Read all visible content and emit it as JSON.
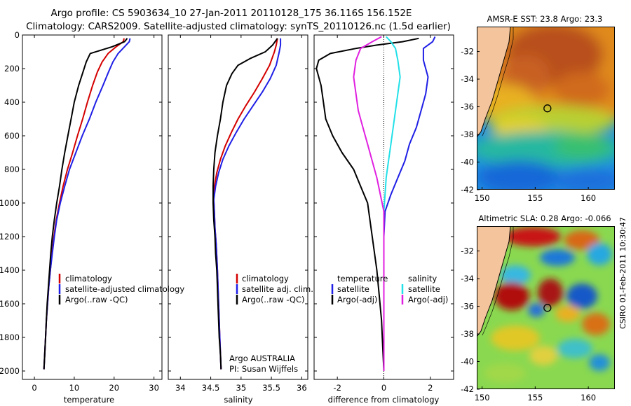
{
  "header": {
    "title_line1": "Argo profile: CS 5903634_10 27-Jan-2011 20110128_175 36.116S 156.152E",
    "title_line2": "Climatology: CARS2009. Satellite-adjusted climatology: synTS_20110126.nc (1.5d earlier)"
  },
  "side_label": "CSIRO 01-Feb-2011 10:30:47",
  "colors": {
    "climatology": "#d40000",
    "satellite": "#1f1fe6",
    "argo": "#000000",
    "sat_diff_salinity": "#22e0e8",
    "argo_diff_salinity": "#e020e0",
    "land": "#f4c49c"
  },
  "chart_data": [
    {
      "type": "line",
      "xlabel": "temperature",
      "ylabel": "",
      "xlim": [
        -3,
        32
      ],
      "ylim": [
        2050,
        0
      ],
      "xticks": [
        0,
        10,
        20,
        30
      ],
      "yticks": [
        0,
        200,
        400,
        600,
        800,
        1000,
        1200,
        1400,
        1600,
        1800,
        2000
      ],
      "legend": [
        "climatology",
        "satellite-adjusted climatology",
        "Argo(..raw -QC)"
      ],
      "series": [
        {
          "name": "climatology",
          "color": "#d40000",
          "points": [
            [
              22.5,
              20
            ],
            [
              22.3,
              40
            ],
            [
              20.5,
              70
            ],
            [
              18.5,
              110
            ],
            [
              17.0,
              160
            ],
            [
              15.8,
              220
            ],
            [
              14.6,
              300
            ],
            [
              13.3,
              400
            ],
            [
              12.1,
              500
            ],
            [
              10.8,
              600
            ],
            [
              9.6,
              700
            ],
            [
              8.3,
              800
            ],
            [
              7.2,
              900
            ],
            [
              6.3,
              1000
            ],
            [
              5.5,
              1100
            ],
            [
              4.9,
              1200
            ],
            [
              4.4,
              1300
            ],
            [
              4.0,
              1400
            ],
            [
              3.6,
              1500
            ],
            [
              3.3,
              1600
            ],
            [
              3.0,
              1700
            ],
            [
              2.8,
              1800
            ],
            [
              2.6,
              1900
            ],
            [
              2.4,
              1990
            ]
          ]
        },
        {
          "name": "satellite-adjusted climatology",
          "color": "#1f1fe6",
          "points": [
            [
              24.0,
              20
            ],
            [
              23.8,
              40
            ],
            [
              22.6,
              70
            ],
            [
              21.0,
              110
            ],
            [
              19.7,
              160
            ],
            [
              18.6,
              220
            ],
            [
              17.2,
              300
            ],
            [
              15.4,
              400
            ],
            [
              13.8,
              500
            ],
            [
              12.0,
              600
            ],
            [
              10.4,
              700
            ],
            [
              8.8,
              800
            ],
            [
              7.6,
              900
            ],
            [
              6.5,
              1000
            ],
            [
              5.6,
              1100
            ],
            [
              5.0,
              1200
            ],
            [
              4.5,
              1300
            ],
            [
              4.0,
              1400
            ],
            [
              3.6,
              1500
            ],
            [
              3.3,
              1600
            ],
            [
              3.0,
              1700
            ],
            [
              2.8,
              1800
            ],
            [
              2.6,
              1900
            ],
            [
              2.4,
              1990
            ]
          ]
        },
        {
          "name": "Argo(..raw -QC)",
          "color": "#000000",
          "points": [
            [
              23.3,
              20
            ],
            [
              22.6,
              40
            ],
            [
              19.5,
              70
            ],
            [
              14.0,
              110
            ],
            [
              13.0,
              160
            ],
            [
              12.2,
              220
            ],
            [
              11.1,
              300
            ],
            [
              10.0,
              400
            ],
            [
              9.2,
              500
            ],
            [
              8.4,
              600
            ],
            [
              7.6,
              700
            ],
            [
              6.9,
              800
            ],
            [
              6.3,
              900
            ],
            [
              5.6,
              1000
            ],
            [
              5.0,
              1100
            ],
            [
              4.5,
              1200
            ],
            [
              4.1,
              1300
            ],
            [
              3.8,
              1400
            ],
            [
              3.5,
              1500
            ],
            [
              3.2,
              1600
            ],
            [
              3.0,
              1700
            ],
            [
              2.8,
              1800
            ],
            [
              2.6,
              1900
            ],
            [
              2.4,
              1990
            ]
          ]
        }
      ]
    },
    {
      "type": "line",
      "xlabel": "salinity",
      "ylabel": "",
      "xlim": [
        33.8,
        36.1
      ],
      "ylim": [
        2050,
        0
      ],
      "xticks": [
        34,
        34.5,
        35,
        35.5,
        36
      ],
      "yticks": [
        0,
        200,
        400,
        600,
        800,
        1000,
        1200,
        1400,
        1600,
        1800,
        2000
      ],
      "legend": [
        "climatology",
        "satellite adj. clim.",
        "Argo(..raw -QC)"
      ],
      "annotation_lines": [
        "Argo AUSTRALIA",
        "PI: Susan Wijffels"
      ],
      "series": [
        {
          "name": "climatology",
          "color": "#d40000",
          "points": [
            [
              35.6,
              20
            ],
            [
              35.58,
              60
            ],
            [
              35.55,
              100
            ],
            [
              35.47,
              180
            ],
            [
              35.35,
              260
            ],
            [
              35.22,
              340
            ],
            [
              35.08,
              420
            ],
            [
              34.95,
              500
            ],
            [
              34.84,
              580
            ],
            [
              34.74,
              660
            ],
            [
              34.66,
              740
            ],
            [
              34.6,
              820
            ],
            [
              34.56,
              900
            ],
            [
              34.55,
              980
            ],
            [
              34.56,
              1060
            ],
            [
              34.57,
              1150
            ],
            [
              34.59,
              1250
            ],
            [
              34.61,
              1400
            ],
            [
              34.63,
              1600
            ],
            [
              34.65,
              1800
            ],
            [
              34.67,
              1990
            ]
          ]
        },
        {
          "name": "satellite adj. clim.",
          "color": "#1f1fe6",
          "points": [
            [
              35.65,
              20
            ],
            [
              35.65,
              60
            ],
            [
              35.63,
              100
            ],
            [
              35.58,
              180
            ],
            [
              35.48,
              260
            ],
            [
              35.35,
              340
            ],
            [
              35.2,
              420
            ],
            [
              35.05,
              500
            ],
            [
              34.92,
              580
            ],
            [
              34.8,
              660
            ],
            [
              34.7,
              740
            ],
            [
              34.63,
              820
            ],
            [
              34.58,
              900
            ],
            [
              34.55,
              980
            ],
            [
              34.56,
              1060
            ],
            [
              34.57,
              1150
            ],
            [
              34.59,
              1250
            ],
            [
              34.61,
              1400
            ],
            [
              34.63,
              1600
            ],
            [
              34.65,
              1800
            ],
            [
              34.67,
              1990
            ]
          ]
        },
        {
          "name": "Argo(..raw -QC)",
          "color": "#000000",
          "points": [
            [
              35.6,
              20
            ],
            [
              35.52,
              60
            ],
            [
              35.4,
              100
            ],
            [
              35.15,
              140
            ],
            [
              34.95,
              180
            ],
            [
              34.85,
              230
            ],
            [
              34.76,
              300
            ],
            [
              34.7,
              400
            ],
            [
              34.66,
              500
            ],
            [
              34.61,
              600
            ],
            [
              34.57,
              700
            ],
            [
              34.55,
              800
            ],
            [
              34.54,
              900
            ],
            [
              34.54,
              1000
            ],
            [
              34.55,
              1100
            ],
            [
              34.57,
              1200
            ],
            [
              34.58,
              1300
            ],
            [
              34.6,
              1400
            ],
            [
              34.61,
              1500
            ],
            [
              34.62,
              1600
            ],
            [
              34.63,
              1700
            ],
            [
              34.64,
              1800
            ],
            [
              34.66,
              1900
            ],
            [
              34.67,
              1990
            ]
          ]
        }
      ]
    },
    {
      "type": "line",
      "xlabel": "difference from climatology",
      "ylabel": "",
      "xlim": [
        -3,
        3
      ],
      "ylim": [
        2050,
        0
      ],
      "xticks": [
        -2,
        0,
        2
      ],
      "yticks": [
        0,
        200,
        400,
        600,
        800,
        1000,
        1200,
        1400,
        1600,
        1800,
        2000
      ],
      "zero_line": true,
      "legend_groups": [
        {
          "heading": "temperature",
          "items": [
            "satellite",
            "Argo(-adj)"
          ]
        },
        {
          "heading": "salinity",
          "items": [
            "satellite",
            "Argo(-adj)"
          ]
        }
      ],
      "series": [
        {
          "name": "temperature satellite",
          "color": "#1f1fe6",
          "points": [
            [
              2.2,
              10
            ],
            [
              2.1,
              40
            ],
            [
              1.7,
              80
            ],
            [
              1.7,
              150
            ],
            [
              1.9,
              250
            ],
            [
              1.8,
              350
            ],
            [
              1.6,
              450
            ],
            [
              1.4,
              550
            ],
            [
              1.1,
              650
            ],
            [
              0.9,
              750
            ],
            [
              0.6,
              850
            ],
            [
              0.3,
              950
            ],
            [
              0.05,
              1050
            ],
            [
              0.0,
              1200
            ],
            [
              0.0,
              1600
            ],
            [
              0.0,
              2000
            ]
          ]
        },
        {
          "name": "temperature Argo(-adj)",
          "color": "#000000",
          "points": [
            [
              1.5,
              20
            ],
            [
              0.8,
              40
            ],
            [
              -0.3,
              60
            ],
            [
              -1.2,
              80
            ],
            [
              -2.3,
              110
            ],
            [
              -2.8,
              150
            ],
            [
              -2.9,
              200
            ],
            [
              -2.7,
              300
            ],
            [
              -2.6,
              400
            ],
            [
              -2.5,
              500
            ],
            [
              -2.2,
              600
            ],
            [
              -1.8,
              700
            ],
            [
              -1.3,
              800
            ],
            [
              -1.0,
              900
            ],
            [
              -0.7,
              1000
            ],
            [
              -0.6,
              1100
            ],
            [
              -0.5,
              1200
            ],
            [
              -0.4,
              1300
            ],
            [
              -0.3,
              1400
            ],
            [
              -0.2,
              1550
            ],
            [
              -0.1,
              1700
            ],
            [
              -0.05,
              1850
            ],
            [
              0.0,
              2000
            ]
          ]
        },
        {
          "name": "salinity satellite",
          "color": "#22e0e8",
          "points": [
            [
              0.1,
              10
            ],
            [
              0.3,
              40
            ],
            [
              0.5,
              80
            ],
            [
              0.6,
              150
            ],
            [
              0.7,
              250
            ],
            [
              0.6,
              350
            ],
            [
              0.5,
              450
            ],
            [
              0.4,
              550
            ],
            [
              0.3,
              650
            ],
            [
              0.2,
              750
            ],
            [
              0.1,
              850
            ],
            [
              0.05,
              950
            ],
            [
              0.0,
              1050
            ],
            [
              0.0,
              1400
            ],
            [
              0.0,
              2000
            ]
          ]
        },
        {
          "name": "salinity Argo(-adj)",
          "color": "#e020e0",
          "points": [
            [
              -0.1,
              10
            ],
            [
              -0.5,
              40
            ],
            [
              -1.0,
              80
            ],
            [
              -1.2,
              150
            ],
            [
              -1.3,
              250
            ],
            [
              -1.2,
              350
            ],
            [
              -1.1,
              450
            ],
            [
              -0.9,
              550
            ],
            [
              -0.7,
              650
            ],
            [
              -0.5,
              750
            ],
            [
              -0.3,
              850
            ],
            [
              -0.15,
              950
            ],
            [
              0.0,
              1050
            ],
            [
              0.0,
              1200
            ],
            [
              0.0,
              2000
            ]
          ]
        }
      ]
    }
  ],
  "maps": [
    {
      "title": "AMSR-E SST: 23.8 Argo: 23.3",
      "xticks": [
        150,
        155,
        160
      ],
      "yticks": [
        -32,
        -34,
        -36,
        -38,
        -40,
        -42
      ],
      "xlim": [
        149.5,
        162.5
      ],
      "ylim": [
        -42,
        -30.2
      ],
      "marker": {
        "lon": 156.152,
        "lat": -36.116
      }
    },
    {
      "title": "Altimetric SLA: 0.28 Argo: -0.066",
      "xticks": [
        150,
        155,
        160
      ],
      "yticks": [
        -32,
        -34,
        -36,
        -38,
        -40,
        -42
      ],
      "xlim": [
        149.5,
        162.5
      ],
      "ylim": [
        -42,
        -30.2
      ],
      "marker": {
        "lon": 156.152,
        "lat": -36.116
      }
    }
  ]
}
